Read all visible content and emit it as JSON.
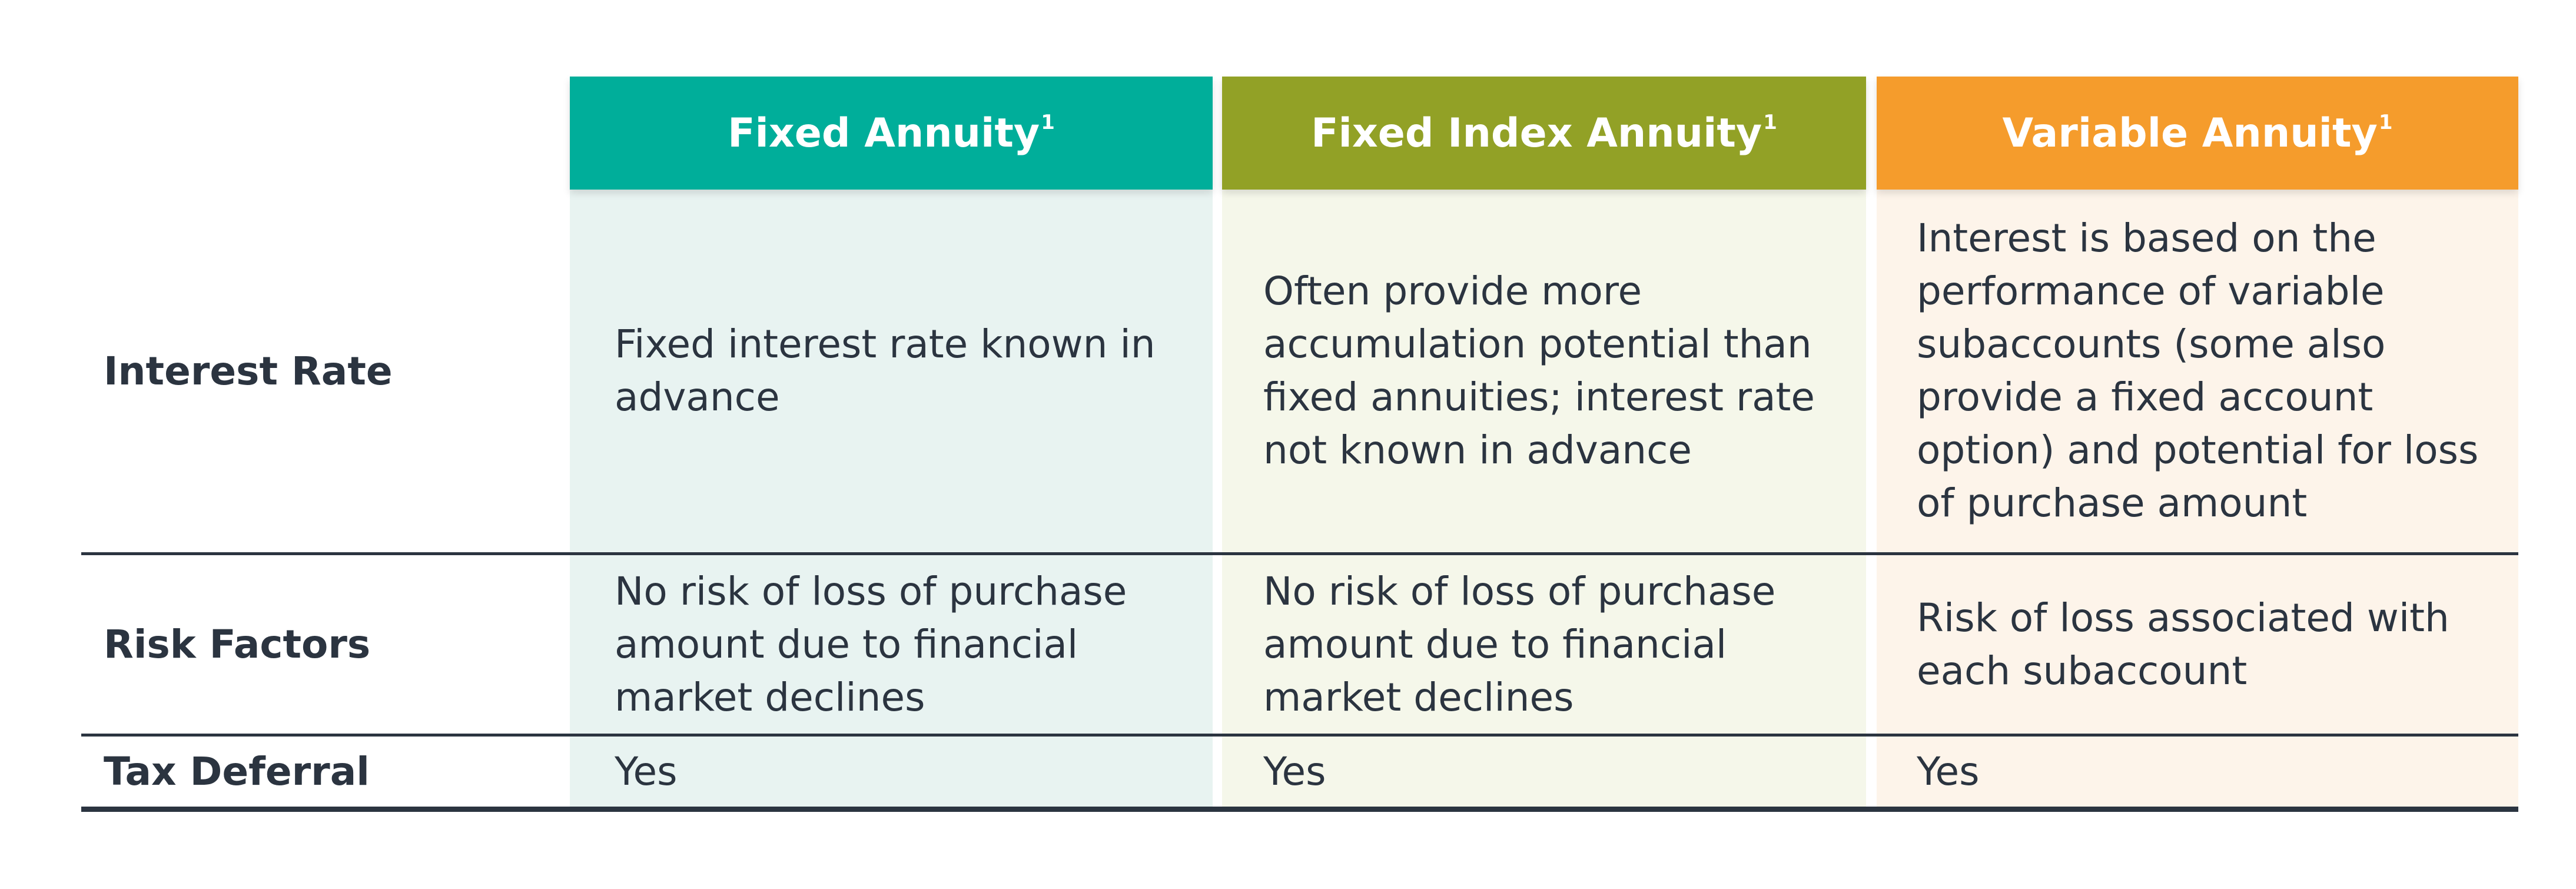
{
  "columns": [
    {
      "label": "Fixed Annuity",
      "sup": "1",
      "color": "#00ae9a"
    },
    {
      "label": "Fixed Index Annuity",
      "sup": "1",
      "color": "#92a126"
    },
    {
      "label": "Variable Annuity",
      "sup": "1",
      "color": "#f59c2c"
    }
  ],
  "rows": [
    {
      "label": "Interest Rate",
      "cells": [
        "Fixed interest rate known in advance",
        "Often provide more accumulation potential than fixed annuities; interest rate not known in advance",
        "Interest is based on the performance of variable subaccounts (some also provide a fixed account option) and potential for loss of purchase amount"
      ]
    },
    {
      "label": "Risk Factors",
      "cells": [
        "No risk of loss of purchase amount due to financial market declines",
        "No risk of loss of purchase amount due to financial market declines",
        "Risk of loss associated with each subaccount"
      ]
    },
    {
      "label": "Tax Deferral",
      "cells": [
        "Yes",
        "Yes",
        "Yes"
      ]
    }
  ]
}
